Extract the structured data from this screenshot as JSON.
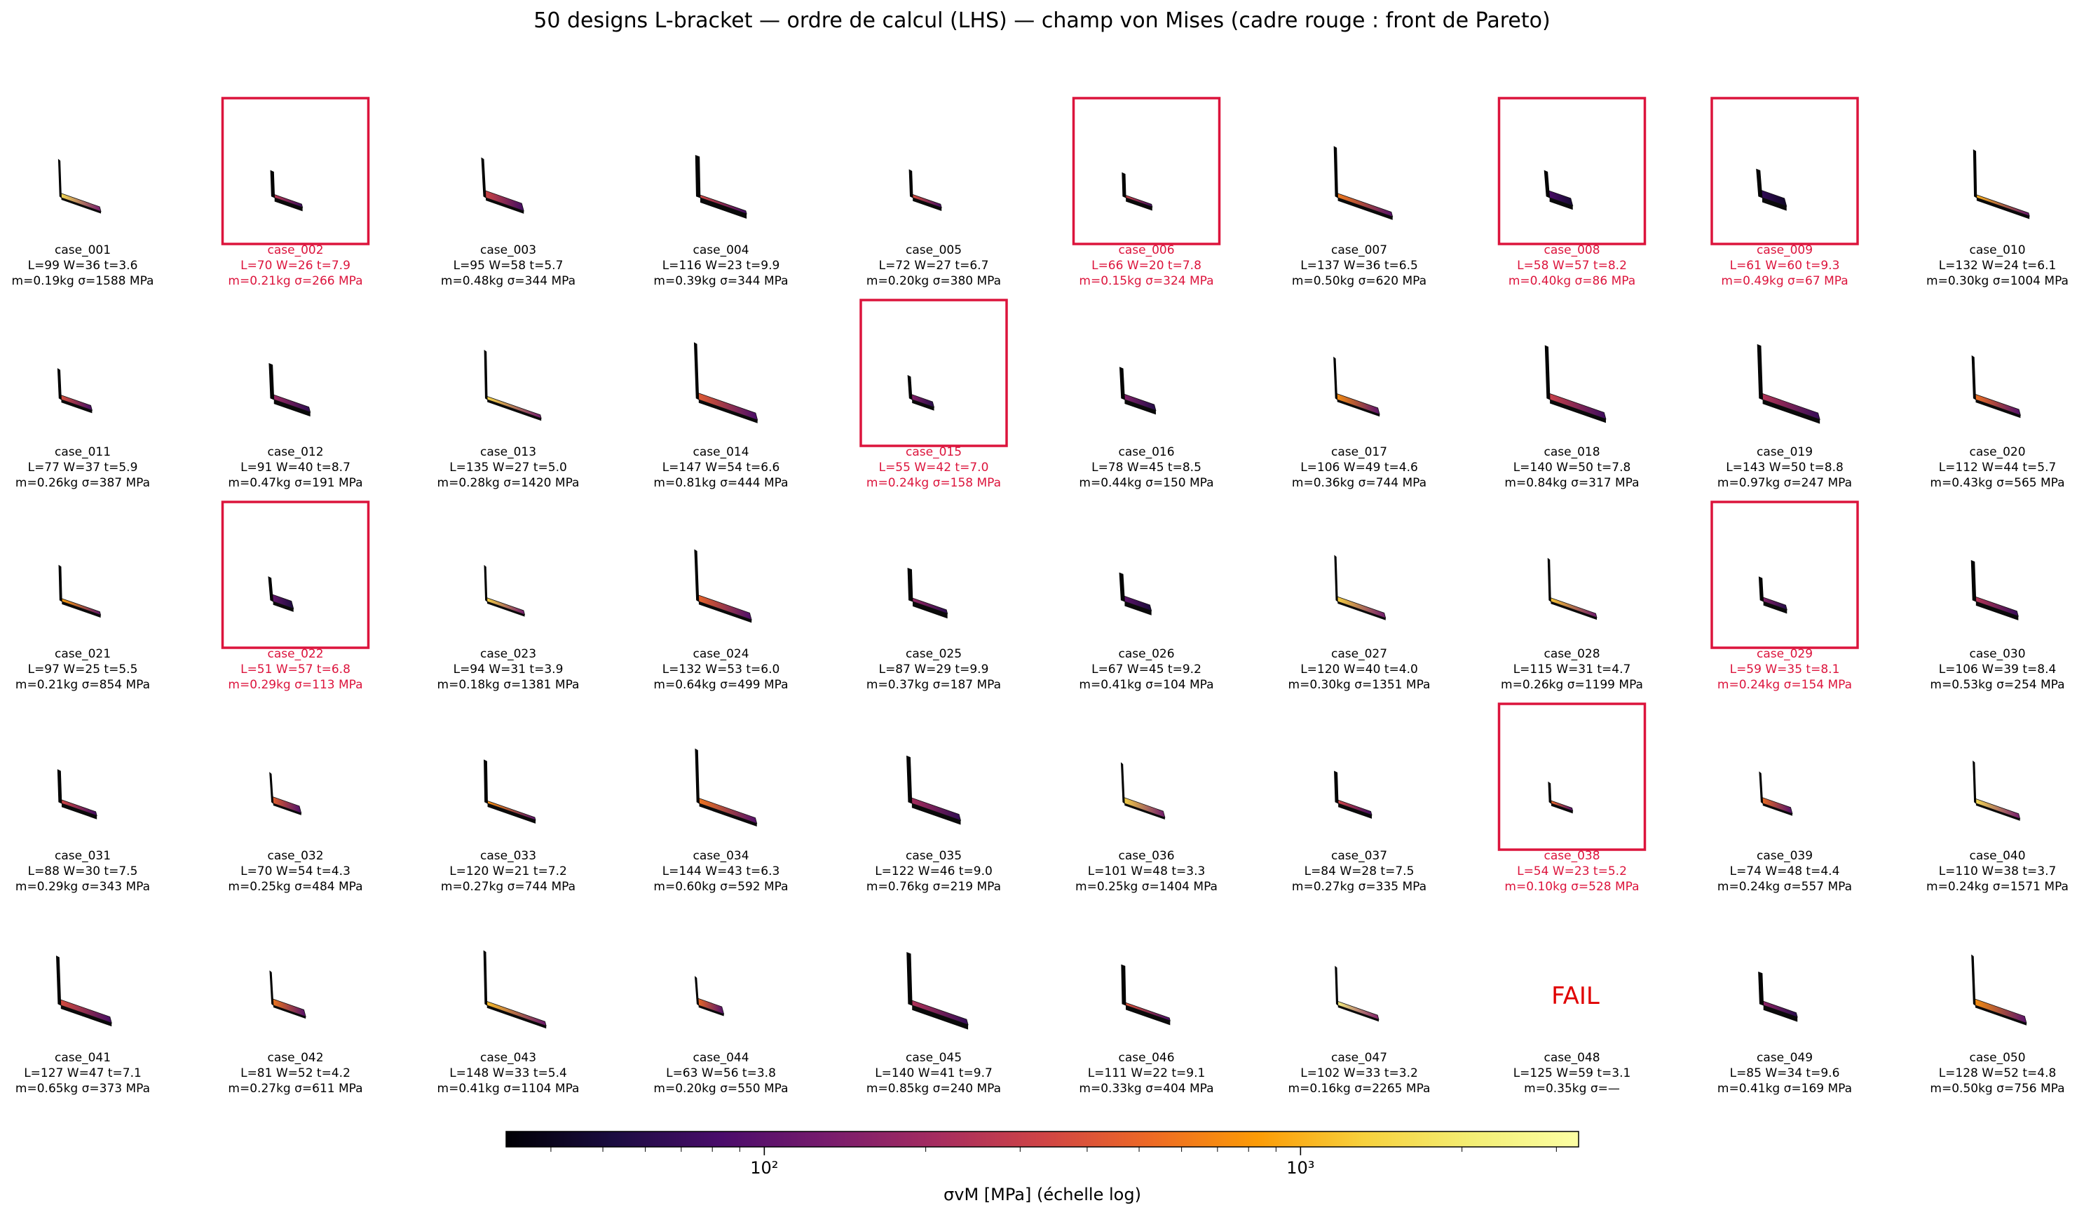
{
  "title": "50 designs L-bracket  —  ordre de calcul (LHS)  —  champ von Mises (cadre rouge : front de Pareto)",
  "colors": {
    "pareto": "#dc143c",
    "fail": "#e00000",
    "text": "#000000"
  },
  "fail_text": "FAIL",
  "chart_data": {
    "type": "small-multiples",
    "rows": 5,
    "cols": 10,
    "colormap": "inferno",
    "colorbar": {
      "label": "σvM [MPa]  (échelle log)",
      "scale": "log",
      "range": [
        33,
        3300
      ],
      "ticks": [
        {
          "value": 100,
          "label": "10²"
        },
        {
          "value": 1000,
          "label": "10³"
        }
      ]
    },
    "cases": [
      {
        "id": "case_001",
        "L": 99,
        "W": 36,
        "t": 3.6,
        "m": 0.19,
        "sigma": 1588,
        "pareto": false
      },
      {
        "id": "case_002",
        "L": 70,
        "W": 26,
        "t": 7.9,
        "m": 0.21,
        "sigma": 266,
        "pareto": true
      },
      {
        "id": "case_003",
        "L": 95,
        "W": 58,
        "t": 5.7,
        "m": 0.48,
        "sigma": 344,
        "pareto": false
      },
      {
        "id": "case_004",
        "L": 116,
        "W": 23,
        "t": 9.9,
        "m": 0.39,
        "sigma": 344,
        "pareto": false
      },
      {
        "id": "case_005",
        "L": 72,
        "W": 27,
        "t": 6.7,
        "m": 0.2,
        "sigma": 380,
        "pareto": false
      },
      {
        "id": "case_006",
        "L": 66,
        "W": 20,
        "t": 7.8,
        "m": 0.15,
        "sigma": 324,
        "pareto": true
      },
      {
        "id": "case_007",
        "L": 137,
        "W": 36,
        "t": 6.5,
        "m": 0.5,
        "sigma": 620,
        "pareto": false
      },
      {
        "id": "case_008",
        "L": 58,
        "W": 57,
        "t": 8.2,
        "m": 0.4,
        "sigma": 86,
        "pareto": true
      },
      {
        "id": "case_009",
        "L": 61,
        "W": 60,
        "t": 9.3,
        "m": 0.49,
        "sigma": 67,
        "pareto": true
      },
      {
        "id": "case_010",
        "L": 132,
        "W": 24,
        "t": 6.1,
        "m": 0.3,
        "sigma": 1004,
        "pareto": false
      },
      {
        "id": "case_011",
        "L": 77,
        "W": 37,
        "t": 5.9,
        "m": 0.26,
        "sigma": 387,
        "pareto": false
      },
      {
        "id": "case_012",
        "L": 91,
        "W": 40,
        "t": 8.7,
        "m": 0.47,
        "sigma": 191,
        "pareto": false
      },
      {
        "id": "case_013",
        "L": 135,
        "W": 27,
        "t": 5.0,
        "m": 0.28,
        "sigma": 1420,
        "pareto": false
      },
      {
        "id": "case_014",
        "L": 147,
        "W": 54,
        "t": 6.6,
        "m": 0.81,
        "sigma": 444,
        "pareto": false
      },
      {
        "id": "case_015",
        "L": 55,
        "W": 42,
        "t": 7.0,
        "m": 0.24,
        "sigma": 158,
        "pareto": true
      },
      {
        "id": "case_016",
        "L": 78,
        "W": 45,
        "t": 8.5,
        "m": 0.44,
        "sigma": 150,
        "pareto": false
      },
      {
        "id": "case_017",
        "L": 106,
        "W": 49,
        "t": 4.6,
        "m": 0.36,
        "sigma": 744,
        "pareto": false
      },
      {
        "id": "case_018",
        "L": 140,
        "W": 50,
        "t": 7.8,
        "m": 0.84,
        "sigma": 317,
        "pareto": false
      },
      {
        "id": "case_019",
        "L": 143,
        "W": 50,
        "t": 8.8,
        "m": 0.97,
        "sigma": 247,
        "pareto": false
      },
      {
        "id": "case_020",
        "L": 112,
        "W": 44,
        "t": 5.7,
        "m": 0.43,
        "sigma": 565,
        "pareto": false
      },
      {
        "id": "case_021",
        "L": 97,
        "W": 25,
        "t": 5.5,
        "m": 0.21,
        "sigma": 854,
        "pareto": false
      },
      {
        "id": "case_022",
        "L": 51,
        "W": 57,
        "t": 6.8,
        "m": 0.29,
        "sigma": 113,
        "pareto": true
      },
      {
        "id": "case_023",
        "L": 94,
        "W": 31,
        "t": 3.9,
        "m": 0.18,
        "sigma": 1381,
        "pareto": false
      },
      {
        "id": "case_024",
        "L": 132,
        "W": 53,
        "t": 6.0,
        "m": 0.64,
        "sigma": 499,
        "pareto": false
      },
      {
        "id": "case_025",
        "L": 87,
        "W": 29,
        "t": 9.9,
        "m": 0.37,
        "sigma": 187,
        "pareto": false
      },
      {
        "id": "case_026",
        "L": 67,
        "W": 45,
        "t": 9.2,
        "m": 0.41,
        "sigma": 104,
        "pareto": false
      },
      {
        "id": "case_027",
        "L": 120,
        "W": 40,
        "t": 4.0,
        "m": 0.3,
        "sigma": 1351,
        "pareto": false
      },
      {
        "id": "case_028",
        "L": 115,
        "W": 31,
        "t": 4.7,
        "m": 0.26,
        "sigma": 1199,
        "pareto": false
      },
      {
        "id": "case_029",
        "L": 59,
        "W": 35,
        "t": 8.1,
        "m": 0.24,
        "sigma": 154,
        "pareto": true
      },
      {
        "id": "case_030",
        "L": 106,
        "W": 39,
        "t": 8.4,
        "m": 0.53,
        "sigma": 254,
        "pareto": false
      },
      {
        "id": "case_031",
        "L": 88,
        "W": 30,
        "t": 7.5,
        "m": 0.29,
        "sigma": 343,
        "pareto": false
      },
      {
        "id": "case_032",
        "L": 70,
        "W": 54,
        "t": 4.3,
        "m": 0.25,
        "sigma": 484,
        "pareto": false
      },
      {
        "id": "case_033",
        "L": 120,
        "W": 21,
        "t": 7.2,
        "m": 0.27,
        "sigma": 744,
        "pareto": false
      },
      {
        "id": "case_034",
        "L": 144,
        "W": 43,
        "t": 6.3,
        "m": 0.6,
        "sigma": 592,
        "pareto": false
      },
      {
        "id": "case_035",
        "L": 122,
        "W": 46,
        "t": 9.0,
        "m": 0.76,
        "sigma": 219,
        "pareto": false
      },
      {
        "id": "case_036",
        "L": 101,
        "W": 48,
        "t": 3.3,
        "m": 0.25,
        "sigma": 1404,
        "pareto": false
      },
      {
        "id": "case_037",
        "L": 84,
        "W": 28,
        "t": 7.5,
        "m": 0.27,
        "sigma": 335,
        "pareto": false
      },
      {
        "id": "case_038",
        "L": 54,
        "W": 23,
        "t": 5.2,
        "m": 0.1,
        "sigma": 528,
        "pareto": true
      },
      {
        "id": "case_039",
        "L": 74,
        "W": 48,
        "t": 4.4,
        "m": 0.24,
        "sigma": 557,
        "pareto": false
      },
      {
        "id": "case_040",
        "L": 110,
        "W": 38,
        "t": 3.7,
        "m": 0.24,
        "sigma": 1571,
        "pareto": false
      },
      {
        "id": "case_041",
        "L": 127,
        "W": 47,
        "t": 7.1,
        "m": 0.65,
        "sigma": 373,
        "pareto": false
      },
      {
        "id": "case_042",
        "L": 81,
        "W": 52,
        "t": 4.2,
        "m": 0.27,
        "sigma": 611,
        "pareto": false
      },
      {
        "id": "case_043",
        "L": 148,
        "W": 33,
        "t": 5.4,
        "m": 0.41,
        "sigma": 1104,
        "pareto": false
      },
      {
        "id": "case_044",
        "L": 63,
        "W": 56,
        "t": 3.8,
        "m": 0.2,
        "sigma": 550,
        "pareto": false
      },
      {
        "id": "case_045",
        "L": 140,
        "W": 41,
        "t": 9.7,
        "m": 0.85,
        "sigma": 240,
        "pareto": false
      },
      {
        "id": "case_046",
        "L": 111,
        "W": 22,
        "t": 9.1,
        "m": 0.33,
        "sigma": 404,
        "pareto": false
      },
      {
        "id": "case_047",
        "L": 102,
        "W": 33,
        "t": 3.2,
        "m": 0.16,
        "sigma": 2265,
        "pareto": false
      },
      {
        "id": "case_048",
        "L": 125,
        "W": 59,
        "t": 3.1,
        "m": 0.35,
        "sigma": null,
        "pareto": false,
        "failed": true
      },
      {
        "id": "case_049",
        "L": 85,
        "W": 34,
        "t": 9.6,
        "m": 0.41,
        "sigma": 169,
        "pareto": false
      },
      {
        "id": "case_050",
        "L": 128,
        "W": 52,
        "t": 4.8,
        "m": 0.5,
        "sigma": 756,
        "pareto": false
      }
    ]
  }
}
